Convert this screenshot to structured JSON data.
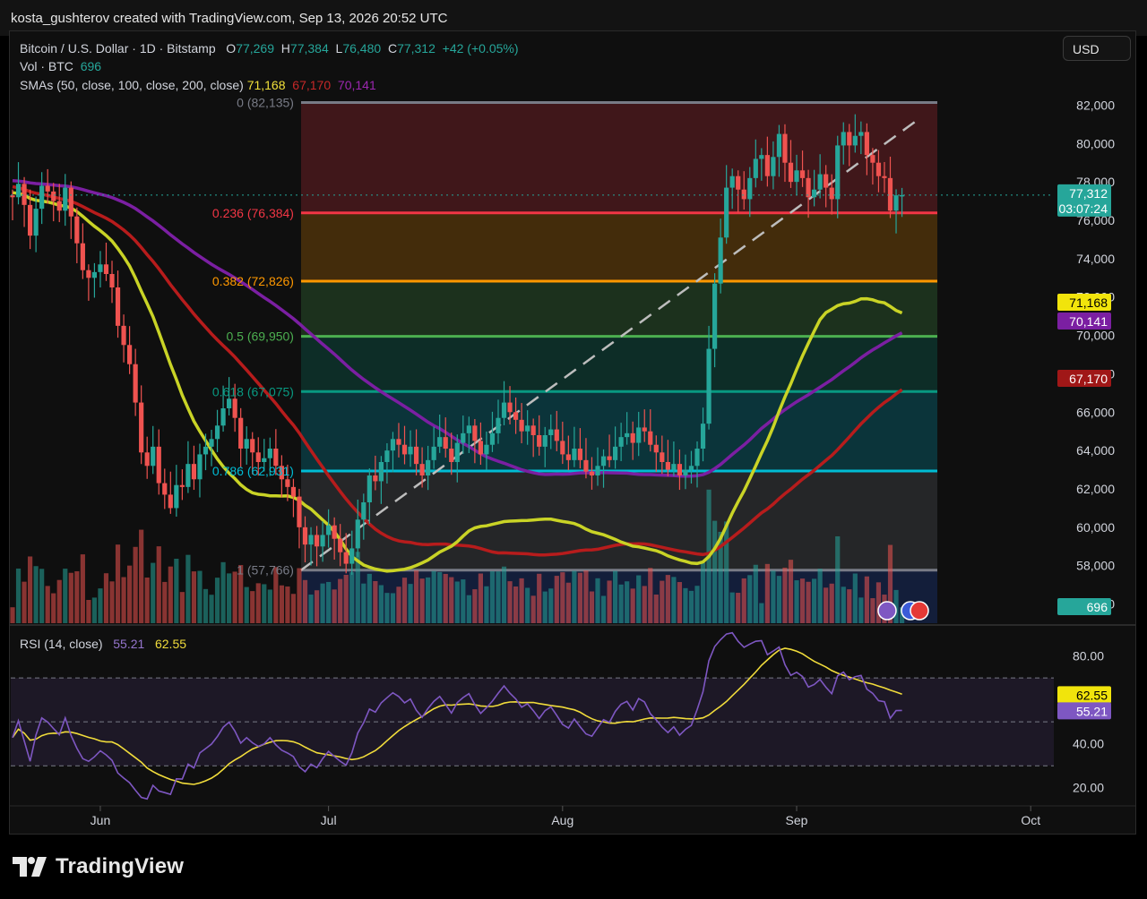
{
  "header": {
    "credit": "kosta_gushterov created with TradingView.com, Sep 13, 2026 20:52 UTC"
  },
  "symbol": {
    "title": "Bitcoin / U.S. Dollar · 1D · Bitstamp",
    "open_label": "O",
    "open": "77,269",
    "high_label": "H",
    "high": "77,384",
    "low_label": "L",
    "low": "76,480",
    "close_label": "C",
    "close": "77,312",
    "change": "+42 (+0.05%)"
  },
  "volume": {
    "label": "Vol · BTC",
    "value": "696"
  },
  "smas": {
    "label": "SMAs (50, close, 100, close, 200, close)",
    "sma50": "71,168",
    "sma100": "67,170",
    "sma200": "70,141"
  },
  "currency_button": "USD",
  "price_badge": {
    "price": "77,312",
    "countdown": "03:07:24"
  },
  "sma_badges": {
    "sma50": "71,168",
    "sma200": "70,141",
    "sma100": "67,170"
  },
  "volume_badge": "696",
  "rsi": {
    "label": "RSI (14, close)",
    "value": "55.21",
    "ma": "62.55"
  },
  "colors": {
    "up": "#26a69a",
    "down": "#ef5350",
    "sma50": "#c9d326",
    "sma100": "#b71c1c",
    "sma200": "#7b1fa2",
    "rsi": "#7e57c2",
    "rsi_ma": "#f1dc3b"
  },
  "footer": {
    "brand": "TradingView"
  },
  "chart_data": [
    {
      "type": "candlestick",
      "symbol": "BTCUSD",
      "timeframe": "1D",
      "x_labels": [
        "Jun",
        "Jul",
        "Aug",
        "Sep",
        "Oct"
      ],
      "y_ticks": [
        "82,000",
        "80,000",
        "78,000",
        "76,000",
        "74,000",
        "72,000",
        "70,000",
        "68,000",
        "66,000",
        "64,000",
        "62,000",
        "60,000",
        "58,000",
        "56,000"
      ],
      "ylim": [
        55000,
        83000
      ],
      "fibonacci": [
        {
          "level": "0",
          "price": "82,135",
          "color": "#787b86"
        },
        {
          "level": "0.236",
          "price": "76,384",
          "color": "#f23645"
        },
        {
          "level": "0.382",
          "price": "72,826",
          "color": "#ff9800"
        },
        {
          "level": "0.5",
          "price": "69,950",
          "color": "#4caf50"
        },
        {
          "level": "0.618",
          "price": "67,075",
          "color": "#089981"
        },
        {
          "level": "0.786",
          "price": "62,931",
          "color": "#00bcd4"
        },
        {
          "level": "1",
          "price": "57,766",
          "color": "#787b86"
        }
      ],
      "closes": [
        77200,
        77900,
        76800,
        75200,
        76600,
        77800,
        77500,
        77000,
        76500,
        77700,
        76200,
        74800,
        73400,
        73000,
        73300,
        73700,
        73200,
        72500,
        70500,
        69500,
        68500,
        66500,
        63900,
        63200,
        64200,
        62300,
        61700,
        61000,
        62200,
        62100,
        63300,
        62500,
        63800,
        64200,
        64600,
        65300,
        66200,
        66700,
        65700,
        64100,
        64600,
        63900,
        63400,
        63600,
        64100,
        63200,
        62500,
        62100,
        61600,
        60000,
        59100,
        59600,
        59000,
        59600,
        60100,
        59400,
        58700,
        58100,
        58900,
        60400,
        61300,
        62700,
        62400,
        63400,
        64000,
        64600,
        64300,
        63800,
        64200,
        63300,
        62700,
        63500,
        64200,
        64700,
        64100,
        63400,
        64400,
        64900,
        65300,
        64500,
        63800,
        64300,
        64900,
        65700,
        66500,
        66000,
        65600,
        65000,
        65300,
        64800,
        64200,
        64800,
        65100,
        64500,
        63800,
        63500,
        64100,
        63500,
        62900,
        62700,
        63200,
        63700,
        63500,
        64200,
        64700,
        64900,
        64400,
        65200,
        65000,
        64300,
        63900,
        63400,
        63000,
        63300,
        62700,
        63000,
        63200,
        64100,
        65400,
        69300,
        72700,
        75100,
        77700,
        78300,
        77600,
        77100,
        78200,
        79200,
        79400,
        78300,
        79300,
        80500,
        79000,
        78000,
        78600,
        78200,
        77200,
        77600,
        78400,
        77700,
        77100,
        79900,
        80600,
        79900,
        80400,
        80600,
        79400,
        79000,
        78300,
        78200,
        76500,
        77300,
        77312
      ],
      "volume_ylim": [
        0,
        20000
      ],
      "rsi_ticks": [
        "80.00",
        "60.00",
        "40.00",
        "20.00"
      ],
      "rsi_ylim": [
        15,
        90
      ],
      "rsi_bands": [
        70,
        50,
        30
      ],
      "rsi_last": 55.21,
      "rsi_ma_last": 62.55
    }
  ]
}
